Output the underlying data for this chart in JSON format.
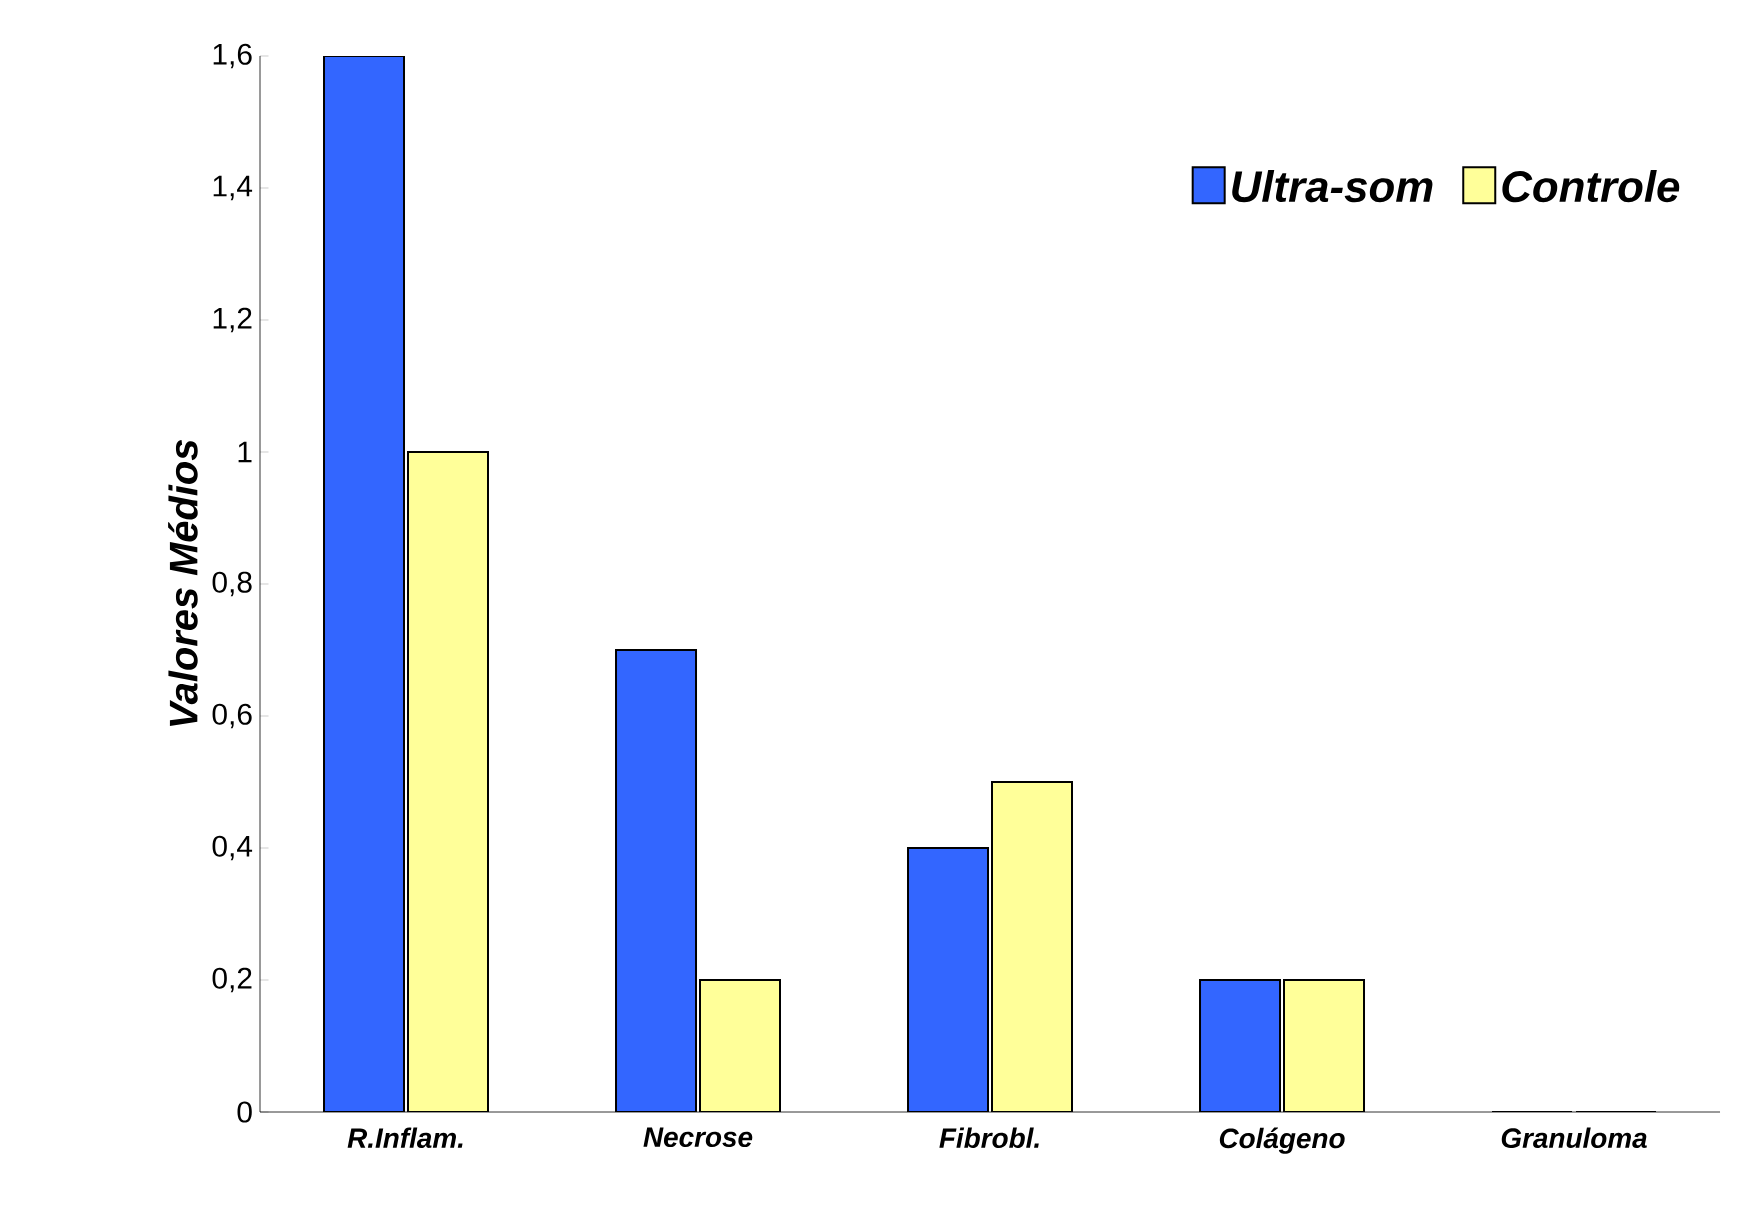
{
  "chart_data": {
    "type": "bar",
    "ylabel": "Valores Médios",
    "categories": [
      "R.Inflam.",
      "Necrose",
      "Fibrobl.",
      "Colágeno",
      "Granuloma"
    ],
    "series": [
      {
        "name": "Ultra-som",
        "color": "#3366ff",
        "values": [
          1.6,
          0.7,
          0.4,
          0.2,
          0
        ]
      },
      {
        "name": "Controle",
        "color": "#ffff99",
        "values": [
          1.0,
          0.2,
          0.5,
          0.2,
          0
        ]
      }
    ],
    "ylim": [
      0,
      1.6
    ],
    "yticks": [
      0,
      {
        "value": 0.2,
        "label": "0,2"
      },
      {
        "value": 0.4,
        "label": "0,4"
      },
      {
        "value": 0.6,
        "label": "0,6"
      },
      {
        "value": 0.8,
        "label": "0,8"
      },
      1,
      {
        "value": 1.2,
        "label": "1,2"
      },
      {
        "value": 1.4,
        "label": "1,4"
      },
      {
        "value": 1.6,
        "label": "1,6"
      }
    ],
    "grid": false,
    "legend": "top right"
  }
}
